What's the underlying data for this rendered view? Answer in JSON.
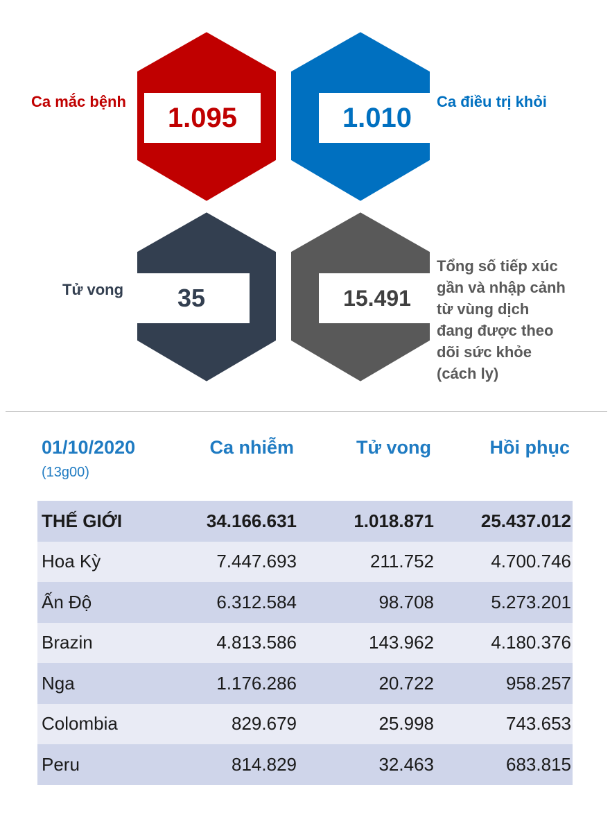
{
  "stats": {
    "cases": {
      "label": "Ca mắc bệnh",
      "value": "1.095",
      "color": "#c00000"
    },
    "recovered": {
      "label": "Ca điều trị khỏi",
      "value": "1.010",
      "color": "#0070c0"
    },
    "deaths": {
      "label": "Tử vong",
      "value": "35",
      "color": "#333f50"
    },
    "monitored": {
      "label": "Tổng số tiếp xúc gần và nhập cảnh từ vùng dịch đang được theo dõi sức khỏe (cách ly)",
      "value": "15.491",
      "color": "#595959"
    }
  },
  "table": {
    "date": "01/10/2020",
    "time": "(13g00)",
    "headers": [
      "Ca nhiễm",
      "Tử vong",
      "Hồi phục"
    ],
    "rows": [
      {
        "country": "THẾ GIỚI",
        "cases": "34.166.631",
        "deaths": "1.018.871",
        "recovered": "25.437.012"
      },
      {
        "country": "Hoa Kỳ",
        "cases": "7.447.693",
        "deaths": "211.752",
        "recovered": "4.700.746"
      },
      {
        "country": "Ấn Độ",
        "cases": "6.312.584",
        "deaths": "98.708",
        "recovered": "5.273.201"
      },
      {
        "country": "Brazin",
        "cases": "4.813.586",
        "deaths": "143.962",
        "recovered": "4.180.376"
      },
      {
        "country": "Nga",
        "cases": "1.176.286",
        "deaths": "20.722",
        "recovered": "958.257"
      },
      {
        "country": "Colombia",
        "cases": "829.679",
        "deaths": "25.998",
        "recovered": "743.653"
      },
      {
        "country": "Peru",
        "cases": "814.829",
        "deaths": "32.463",
        "recovered": "683.815"
      }
    ]
  },
  "colors": {
    "accent_blue": "#1f7bc2",
    "row_dark": "#cfd5ea",
    "row_light": "#e9ebf5"
  }
}
